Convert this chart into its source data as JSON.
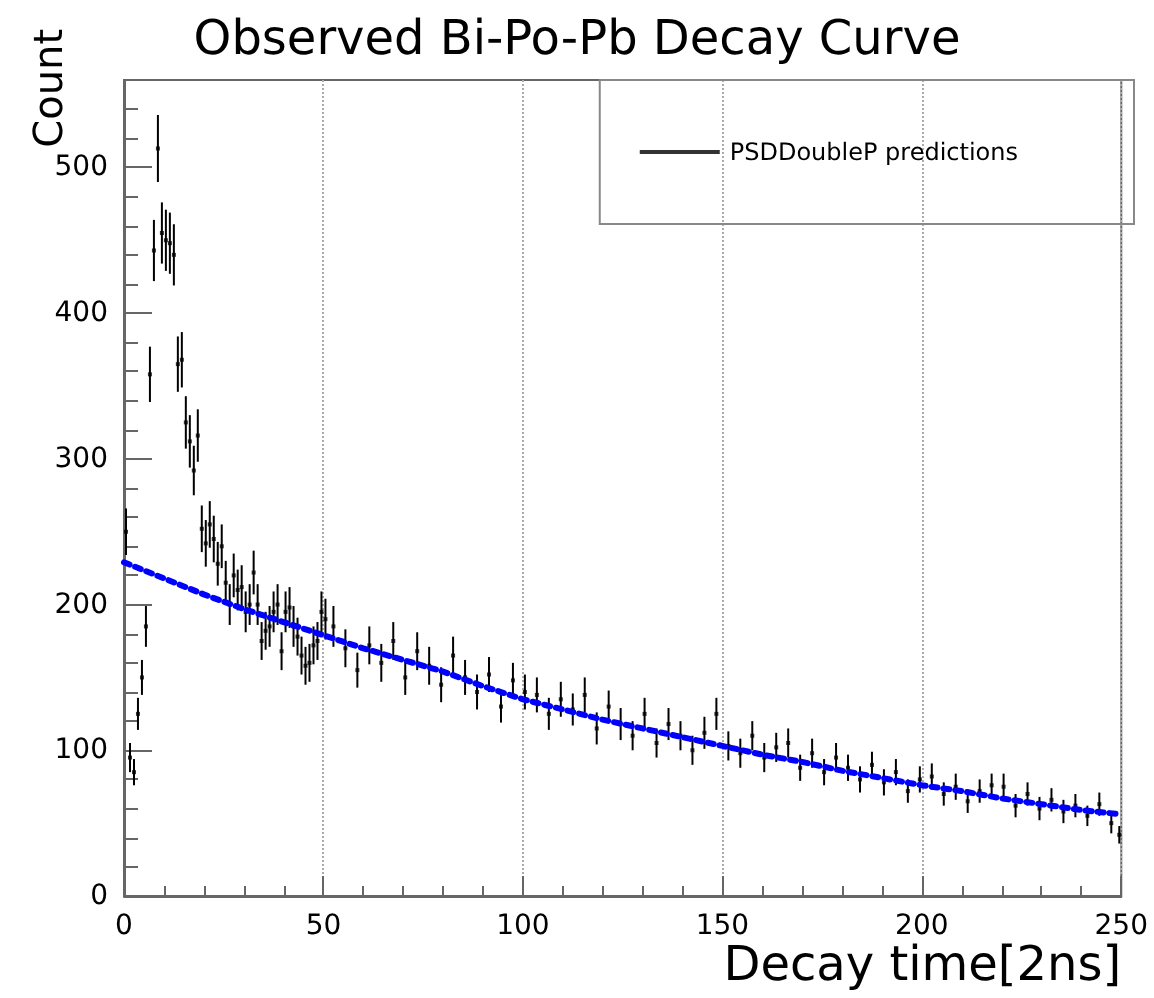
{
  "chart_data": {
    "type": "scatter",
    "title": "Observed Bi-Po-Pb Decay Curve",
    "xlabel": "Decay time[2ns]",
    "ylabel": "Count",
    "xlim": [
      0,
      250
    ],
    "xticks": [
      0,
      50,
      100,
      150,
      200,
      250
    ],
    "ylim": [
      0,
      560
    ],
    "yticks": [
      0,
      100,
      200,
      300,
      400,
      500
    ],
    "grid": "x",
    "legend": "top right",
    "series": [
      {
        "name": "PSDDoubleP predictions",
        "color": "#000000",
        "marker": "square",
        "x": [
          0.5,
          1.5,
          2.5,
          3.5,
          4.5,
          5.5,
          6.5,
          7.5,
          8.5,
          9.5,
          10.5,
          11.5,
          12.5,
          13.5,
          14.5,
          15.5,
          16.5,
          17.5,
          18.5,
          19.5,
          20.5,
          21.5,
          22.5,
          23.5,
          24.5,
          25.5,
          26.5,
          27.5,
          28.5,
          29.5,
          30.5,
          31.5,
          32.5,
          33.5,
          34.5,
          35.5,
          36.5,
          37.5,
          38.5,
          39.5,
          40.5,
          41.5,
          42.5,
          43.5,
          44.5,
          45.5,
          46.5,
          47.5,
          48.5,
          49.5,
          50.5,
          52.5,
          55.5,
          58.5,
          61.5,
          64.5,
          67.5,
          70.5,
          73.5,
          76.5,
          79.5,
          82.5,
          85.5,
          88.5,
          91.5,
          94.5,
          97.5,
          100.5,
          103.5,
          106.5,
          109.5,
          112.5,
          115.5,
          118.5,
          121.5,
          124.5,
          127.5,
          130.5,
          133.5,
          136.5,
          139.5,
          142.5,
          145.5,
          148.5,
          151.5,
          154.5,
          157.5,
          160.5,
          163.5,
          166.5,
          169.5,
          172.5,
          175.5,
          178.5,
          181.5,
          184.5,
          187.5,
          190.5,
          193.5,
          196.5,
          199.5,
          202.5,
          205.5,
          208.5,
          211.5,
          214.5,
          217.5,
          220.5,
          223.5,
          226.5,
          229.5,
          232.5,
          235.5,
          238.5,
          241.5,
          244.5,
          247.5,
          249.5
        ],
        "values": [
          250,
          95,
          85,
          125,
          150,
          185,
          358,
          443,
          513,
          455,
          450,
          448,
          440,
          365,
          368,
          325,
          312,
          292,
          316,
          252,
          242,
          255,
          245,
          228,
          240,
          215,
          200,
          220,
          210,
          212,
          195,
          200,
          222,
          200,
          175,
          182,
          185,
          195,
          200,
          168,
          195,
          198,
          185,
          178,
          165,
          158,
          160,
          172,
          175,
          195,
          190,
          185,
          170,
          155,
          172,
          160,
          175,
          150,
          168,
          158,
          145,
          165,
          150,
          140,
          152,
          130,
          148,
          140,
          138,
          125,
          135,
          128,
          138,
          115,
          130,
          118,
          110,
          125,
          105,
          118,
          110,
          100,
          112,
          125,
          103,
          98,
          110,
          95,
          102,
          105,
          88,
          98,
          85,
          95,
          88,
          80,
          90,
          78,
          85,
          72,
          80,
          82,
          70,
          75,
          65,
          72,
          76,
          75,
          62,
          70,
          60,
          66,
          58,
          62,
          55,
          63,
          50,
          42
        ],
        "errors": [
          16,
          10,
          9,
          11,
          12,
          14,
          19,
          21,
          23,
          21,
          21,
          21,
          21,
          19,
          19,
          18,
          18,
          17,
          18,
          16,
          16,
          16,
          16,
          15,
          15,
          15,
          14,
          15,
          14,
          15,
          14,
          14,
          15,
          14,
          13,
          13,
          14,
          14,
          14,
          13,
          14,
          14,
          14,
          13,
          13,
          13,
          13,
          13,
          13,
          14,
          14,
          14,
          13,
          12,
          13,
          13,
          13,
          12,
          13,
          13,
          12,
          13,
          12,
          12,
          12,
          11,
          12,
          12,
          12,
          11,
          12,
          11,
          12,
          11,
          11,
          11,
          10,
          11,
          10,
          11,
          10,
          10,
          11,
          11,
          10,
          10,
          10,
          10,
          10,
          10,
          9,
          10,
          9,
          10,
          9,
          9,
          9,
          9,
          9,
          8,
          9,
          9,
          8,
          9,
          8,
          8,
          8,
          9,
          8,
          8,
          8,
          8,
          8,
          8,
          7,
          8,
          7,
          6
        ]
      },
      {
        "type": "line",
        "color": "#0000ff",
        "line_style": "dotted",
        "marker": "none",
        "x": [
          0,
          10,
          20,
          30,
          40,
          50,
          60,
          70,
          80,
          90,
          100,
          110,
          120,
          130,
          140,
          150,
          160,
          170,
          180,
          190,
          200,
          210,
          220,
          230,
          240,
          250
        ],
        "values": [
          229,
          218,
          207,
          197,
          188,
          179,
          170,
          162,
          154,
          144,
          135,
          128,
          121,
          115,
          109,
          103,
          97,
          92,
          86,
          81,
          76,
          72,
          67,
          63,
          59,
          56
        ]
      }
    ]
  }
}
